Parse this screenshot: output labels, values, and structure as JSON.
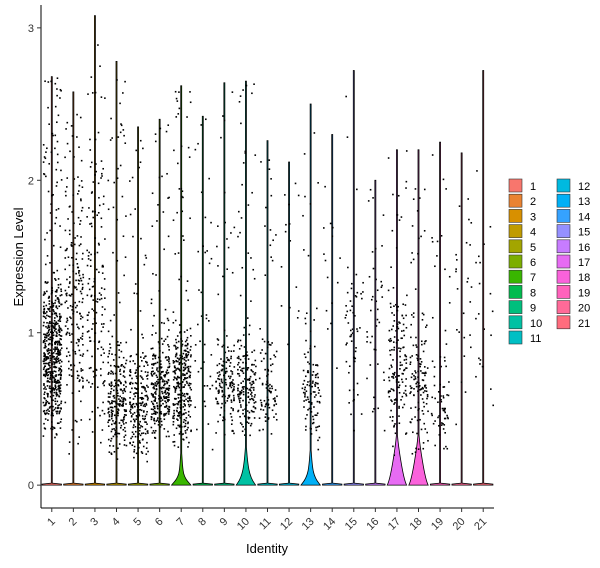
{
  "chart_data": {
    "type": "violin",
    "xlabel": "Identity",
    "ylabel": "Expression Level",
    "categories": [
      "1",
      "2",
      "3",
      "4",
      "5",
      "6",
      "7",
      "8",
      "9",
      "10",
      "11",
      "12",
      "13",
      "14",
      "15",
      "16",
      "17",
      "18",
      "19",
      "20",
      "21"
    ],
    "ylim": [
      -0.15,
      3.15
    ],
    "yticks": [
      0,
      1,
      2,
      3
    ],
    "grid": false,
    "legend": {
      "placement": "right",
      "columns": 2,
      "entries": [
        "1",
        "2",
        "3",
        "4",
        "5",
        "6",
        "7",
        "8",
        "9",
        "10",
        "11",
        "12",
        "13",
        "14",
        "15",
        "16",
        "17",
        "18",
        "19",
        "20",
        "21"
      ]
    },
    "colors": [
      "#F8766D",
      "#EA8331",
      "#D89000",
      "#C09B00",
      "#A3A500",
      "#7CAE00",
      "#39B600",
      "#00BB4E",
      "#00BF7D",
      "#00C1A3",
      "#00BFC4",
      "#00BAE0",
      "#00B0F6",
      "#35A2FF",
      "#9590FF",
      "#C77CFF",
      "#E76BF3",
      "#FA62DB",
      "#FF62BC",
      "#FF6A98",
      "#FF6C7D"
    ],
    "violins": [
      {
        "group": "1",
        "max": 2.68,
        "bulge_width": 0.0,
        "bulge_top": 0.0
      },
      {
        "group": "2",
        "max": 2.58,
        "bulge_width": 0.0,
        "bulge_top": 0.0
      },
      {
        "group": "3",
        "max": 3.08,
        "bulge_width": 0.0,
        "bulge_top": 0.0
      },
      {
        "group": "4",
        "max": 2.78,
        "bulge_width": 0.0,
        "bulge_top": 0.0
      },
      {
        "group": "5",
        "max": 2.35,
        "bulge_width": 0.0,
        "bulge_top": 0.0
      },
      {
        "group": "6",
        "max": 2.4,
        "bulge_width": 0.0,
        "bulge_top": 0.0
      },
      {
        "group": "7",
        "max": 2.62,
        "bulge_width": 0.45,
        "bulge_top": 0.12
      },
      {
        "group": "8",
        "max": 2.42,
        "bulge_width": 0.0,
        "bulge_top": 0.0
      },
      {
        "group": "9",
        "max": 2.64,
        "bulge_width": 0.0,
        "bulge_top": 0.0
      },
      {
        "group": "10",
        "max": 2.65,
        "bulge_width": 0.55,
        "bulge_top": 0.16
      },
      {
        "group": "11",
        "max": 2.26,
        "bulge_width": 0.0,
        "bulge_top": 0.0
      },
      {
        "group": "12",
        "max": 2.12,
        "bulge_width": 0.0,
        "bulge_top": 0.0
      },
      {
        "group": "13",
        "max": 2.5,
        "bulge_width": 0.5,
        "bulge_top": 0.14
      },
      {
        "group": "14",
        "max": 2.3,
        "bulge_width": 0.0,
        "bulge_top": 0.0
      },
      {
        "group": "15",
        "max": 2.72,
        "bulge_width": 0.0,
        "bulge_top": 0.0
      },
      {
        "group": "16",
        "max": 2.0,
        "bulge_width": 0.0,
        "bulge_top": 0.0
      },
      {
        "group": "17",
        "max": 2.2,
        "bulge_width": 0.75,
        "bulge_top": 0.24
      },
      {
        "group": "18",
        "max": 2.2,
        "bulge_width": 0.75,
        "bulge_top": 0.24
      },
      {
        "group": "19",
        "max": 2.25,
        "bulge_width": 0.0,
        "bulge_top": 0.0
      },
      {
        "group": "20",
        "max": 2.18,
        "bulge_width": 0.0,
        "bulge_top": 0.0
      },
      {
        "group": "21",
        "max": 2.72,
        "bulge_width": 0.0,
        "bulge_top": 0.0
      }
    ],
    "jitter_density": [
      {
        "group": "1",
        "n_points": 600,
        "typical_low": 0.3,
        "typical_high": 1.4
      },
      {
        "group": "2",
        "n_points": 200,
        "typical_low": 0.2,
        "typical_high": 2.2
      },
      {
        "group": "3",
        "n_points": 150,
        "typical_low": 0.2,
        "typical_high": 2.4
      },
      {
        "group": "4",
        "n_points": 250,
        "typical_low": 0.15,
        "typical_high": 1.0
      },
      {
        "group": "5",
        "n_points": 220,
        "typical_low": 0.15,
        "typical_high": 0.9
      },
      {
        "group": "6",
        "n_points": 280,
        "typical_low": 0.25,
        "typical_high": 1.0
      },
      {
        "group": "7",
        "n_points": 320,
        "typical_low": 0.25,
        "typical_high": 1.1
      },
      {
        "group": "8",
        "n_points": 40,
        "typical_low": 0.2,
        "typical_high": 2.0
      },
      {
        "group": "9",
        "n_points": 150,
        "typical_low": 0.3,
        "typical_high": 1.0
      },
      {
        "group": "10",
        "n_points": 180,
        "typical_low": 0.3,
        "typical_high": 1.0
      },
      {
        "group": "11",
        "n_points": 100,
        "typical_low": 0.3,
        "typical_high": 1.0
      },
      {
        "group": "12",
        "n_points": 15,
        "typical_low": 0.5,
        "typical_high": 2.1
      },
      {
        "group": "13",
        "n_points": 110,
        "typical_low": 0.2,
        "typical_high": 1.0
      },
      {
        "group": "14",
        "n_points": 15,
        "typical_low": 0.4,
        "typical_high": 2.2
      },
      {
        "group": "15",
        "n_points": 55,
        "typical_low": 0.3,
        "typical_high": 1.6
      },
      {
        "group": "16",
        "n_points": 40,
        "typical_low": 0.3,
        "typical_high": 1.6
      },
      {
        "group": "17",
        "n_points": 150,
        "typical_low": 0.2,
        "typical_high": 1.4
      },
      {
        "group": "18",
        "n_points": 130,
        "typical_low": 0.2,
        "typical_high": 1.2
      },
      {
        "group": "19",
        "n_points": 70,
        "typical_low": 0.2,
        "typical_high": 1.0
      },
      {
        "group": "20",
        "n_points": 25,
        "typical_low": 0.3,
        "typical_high": 2.0
      },
      {
        "group": "21",
        "n_points": 20,
        "typical_low": 0.3,
        "typical_high": 2.0
      }
    ]
  }
}
